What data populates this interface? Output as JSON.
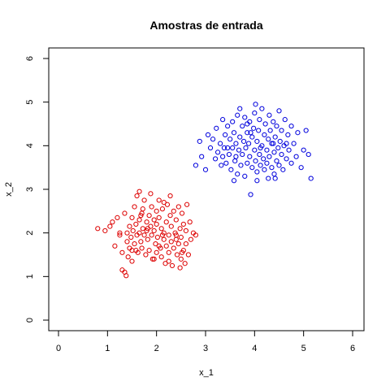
{
  "chart_data": {
    "type": "scatter",
    "title": "Amostras de entrada",
    "xlabel": "x_1",
    "ylabel": "x_2",
    "xlim": [
      0,
      6
    ],
    "ylim": [
      0,
      6
    ],
    "x_ticks": [
      "0",
      "1",
      "2",
      "3",
      "4",
      "5",
      "6"
    ],
    "y_ticks": [
      "0",
      "1",
      "2",
      "3",
      "4",
      "5",
      "6"
    ],
    "grid": false,
    "legend": null,
    "series": [
      {
        "color": "#dd0000",
        "marker": "open-circle",
        "points": [
          [
            0.8,
            2.1
          ],
          [
            0.95,
            2.05
          ],
          [
            1.05,
            2.15
          ],
          [
            1.1,
            2.25
          ],
          [
            1.15,
            1.7
          ],
          [
            1.2,
            2.35
          ],
          [
            1.25,
            1.95
          ],
          [
            1.3,
            1.55
          ],
          [
            1.3,
            1.15
          ],
          [
            1.35,
            1.1
          ],
          [
            1.35,
            2.45
          ],
          [
            1.38,
            1.02
          ],
          [
            1.4,
            2.0
          ],
          [
            1.4,
            1.8
          ],
          [
            1.42,
            1.45
          ],
          [
            1.45,
            2.15
          ],
          [
            1.45,
            1.65
          ],
          [
            1.48,
            1.9
          ],
          [
            1.5,
            2.35
          ],
          [
            1.5,
            1.35
          ],
          [
            1.52,
            2.05
          ],
          [
            1.55,
            2.6
          ],
          [
            1.55,
            1.75
          ],
          [
            1.58,
            2.2
          ],
          [
            1.6,
            1.95
          ],
          [
            1.6,
            2.85
          ],
          [
            1.62,
            1.55
          ],
          [
            1.65,
            2.3
          ],
          [
            1.65,
            2.0
          ],
          [
            1.65,
            2.95
          ],
          [
            1.68,
            1.8
          ],
          [
            1.7,
            2.45
          ],
          [
            1.7,
            1.65
          ],
          [
            1.72,
            2.1
          ],
          [
            1.75,
            2.75
          ],
          [
            1.75,
            1.95
          ],
          [
            1.78,
            1.5
          ],
          [
            1.8,
            2.25
          ],
          [
            1.8,
            2.05
          ],
          [
            1.82,
            1.85
          ],
          [
            1.85,
            2.4
          ],
          [
            1.85,
            1.6
          ],
          [
            1.88,
            2.15
          ],
          [
            1.9,
            2.6
          ],
          [
            1.9,
            1.95
          ],
          [
            1.92,
            1.4
          ],
          [
            1.95,
            2.3
          ],
          [
            1.95,
            2.05
          ],
          [
            1.98,
            1.75
          ],
          [
            2.0,
            2.5
          ],
          [
            2.0,
            2.2
          ],
          [
            2.0,
            1.55
          ],
          [
            2.02,
            1.9
          ],
          [
            2.05,
            2.75
          ],
          [
            2.05,
            2.35
          ],
          [
            2.08,
            1.65
          ],
          [
            2.1,
            2.1
          ],
          [
            2.1,
            1.45
          ],
          [
            2.12,
            2.55
          ],
          [
            2.15,
            1.85
          ],
          [
            2.15,
            2.0
          ],
          [
            2.18,
            1.3
          ],
          [
            2.2,
            2.25
          ],
          [
            2.2,
            1.7
          ],
          [
            2.22,
            2.65
          ],
          [
            2.25,
            1.95
          ],
          [
            2.25,
            1.55
          ],
          [
            2.28,
            2.4
          ],
          [
            2.3,
            1.8
          ],
          [
            2.3,
            2.15
          ],
          [
            2.32,
            1.25
          ],
          [
            2.35,
            2.5
          ],
          [
            2.35,
            1.65
          ],
          [
            2.38,
            2.0
          ],
          [
            2.4,
            1.85
          ],
          [
            2.4,
            2.3
          ],
          [
            2.42,
            1.5
          ],
          [
            2.45,
            2.6
          ],
          [
            2.45,
            1.75
          ],
          [
            2.48,
            2.1
          ],
          [
            2.5,
            1.9
          ],
          [
            2.5,
            1.4
          ],
          [
            2.52,
            2.45
          ],
          [
            2.55,
            1.6
          ],
          [
            2.55,
            2.2
          ],
          [
            2.58,
            1.3
          ],
          [
            2.6,
            2.05
          ],
          [
            2.6,
            1.75
          ],
          [
            2.62,
            2.65
          ],
          [
            2.65,
            1.5
          ],
          [
            2.68,
            2.25
          ],
          [
            2.7,
            1.85
          ],
          [
            2.75,
            2.0
          ],
          [
            2.8,
            1.95
          ],
          [
            1.25,
            2.0
          ],
          [
            1.58,
            1.6
          ],
          [
            1.72,
            2.55
          ],
          [
            1.88,
            2.9
          ],
          [
            2.28,
            2.85
          ],
          [
            2.48,
            1.2
          ],
          [
            1.95,
            1.4
          ],
          [
            2.15,
            2.7
          ],
          [
            2.4,
            1.95
          ],
          [
            2.05,
            1.7
          ],
          [
            1.68,
            2.4
          ],
          [
            2.52,
            1.55
          ],
          [
            2.25,
            1.35
          ],
          [
            1.82,
            2.1
          ],
          [
            2.12,
            1.95
          ],
          [
            1.5,
            1.6
          ]
        ]
      },
      {
        "color": "#0000dd",
        "marker": "open-circle",
        "points": [
          [
            2.8,
            3.55
          ],
          [
            2.88,
            4.1
          ],
          [
            2.92,
            3.75
          ],
          [
            3.0,
            3.45
          ],
          [
            3.05,
            4.25
          ],
          [
            3.1,
            3.95
          ],
          [
            3.15,
            4.15
          ],
          [
            3.2,
            3.7
          ],
          [
            3.22,
            4.4
          ],
          [
            3.25,
            3.85
          ],
          [
            3.3,
            4.05
          ],
          [
            3.32,
            3.55
          ],
          [
            3.35,
            4.6
          ],
          [
            3.38,
            3.95
          ],
          [
            3.4,
            4.25
          ],
          [
            3.42,
            3.6
          ],
          [
            3.45,
            4.45
          ],
          [
            3.48,
            3.8
          ],
          [
            3.5,
            4.15
          ],
          [
            3.52,
            3.45
          ],
          [
            3.55,
            4.55
          ],
          [
            3.55,
            3.95
          ],
          [
            3.58,
            4.3
          ],
          [
            3.6,
            3.65
          ],
          [
            3.62,
            4.05
          ],
          [
            3.65,
            3.35
          ],
          [
            3.65,
            4.7
          ],
          [
            3.68,
            3.9
          ],
          [
            3.7,
            4.2
          ],
          [
            3.72,
            3.55
          ],
          [
            3.75,
            4.45
          ],
          [
            3.75,
            3.8
          ],
          [
            3.78,
            4.1
          ],
          [
            3.8,
            3.3
          ],
          [
            3.8,
            4.65
          ],
          [
            3.82,
            3.95
          ],
          [
            3.85,
            4.3
          ],
          [
            3.85,
            3.6
          ],
          [
            3.88,
            4.05
          ],
          [
            3.9,
            4.55
          ],
          [
            3.9,
            3.75
          ],
          [
            3.92,
            2.88
          ],
          [
            3.95,
            4.2
          ],
          [
            3.95,
            3.5
          ],
          [
            3.98,
            4.4
          ],
          [
            4.0,
            3.9
          ],
          [
            4.0,
            4.75
          ],
          [
            4.02,
            3.65
          ],
          [
            4.05,
            4.1
          ],
          [
            4.05,
            3.4
          ],
          [
            4.08,
            4.35
          ],
          [
            4.1,
            3.8
          ],
          [
            4.1,
            4.6
          ],
          [
            4.12,
            3.55
          ],
          [
            4.15,
            4.0
          ],
          [
            4.15,
            4.85
          ],
          [
            4.18,
            3.7
          ],
          [
            4.2,
            4.25
          ],
          [
            4.2,
            3.45
          ],
          [
            4.22,
            4.5
          ],
          [
            4.25,
            3.9
          ],
          [
            4.25,
            3.6
          ],
          [
            4.28,
            4.15
          ],
          [
            4.3,
            4.7
          ],
          [
            4.3,
            3.75
          ],
          [
            4.32,
            4.35
          ],
          [
            4.35,
            3.5
          ],
          [
            4.35,
            4.05
          ],
          [
            4.38,
            4.55
          ],
          [
            4.4,
            3.85
          ],
          [
            4.4,
            3.35
          ],
          [
            4.42,
            4.2
          ],
          [
            4.45,
            3.65
          ],
          [
            4.45,
            4.45
          ],
          [
            4.48,
            3.95
          ],
          [
            4.5,
            4.8
          ],
          [
            4.5,
            3.55
          ],
          [
            4.52,
            4.1
          ],
          [
            4.55,
            3.8
          ],
          [
            4.55,
            4.35
          ],
          [
            4.58,
            3.45
          ],
          [
            4.6,
            4.0
          ],
          [
            4.62,
            4.6
          ],
          [
            4.65,
            3.7
          ],
          [
            4.68,
            4.25
          ],
          [
            4.7,
            3.9
          ],
          [
            4.75,
            4.45
          ],
          [
            4.75,
            3.6
          ],
          [
            4.8,
            4.05
          ],
          [
            4.85,
            3.75
          ],
          [
            4.88,
            4.3
          ],
          [
            4.95,
            3.5
          ],
          [
            5.0,
            3.9
          ],
          [
            5.05,
            4.35
          ],
          [
            5.1,
            3.8
          ],
          [
            5.15,
            3.25
          ],
          [
            3.58,
            3.2
          ],
          [
            3.7,
            4.85
          ],
          [
            4.02,
            4.95
          ],
          [
            4.42,
            3.25
          ],
          [
            3.35,
            3.75
          ],
          [
            3.85,
            4.5
          ],
          [
            4.12,
            3.95
          ],
          [
            4.28,
            3.25
          ],
          [
            3.62,
            3.75
          ],
          [
            4.65,
            4.05
          ],
          [
            3.45,
            3.95
          ],
          [
            4.05,
            3.2
          ],
          [
            4.38,
            4.05
          ],
          [
            3.92,
            4.3
          ]
        ]
      }
    ]
  }
}
